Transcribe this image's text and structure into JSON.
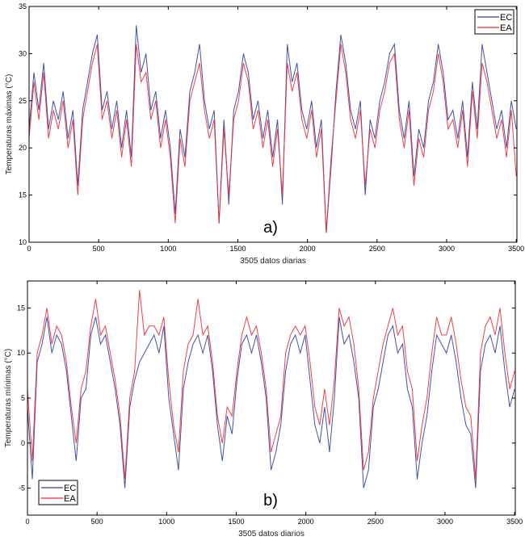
{
  "chart_data": [
    {
      "type": "line",
      "panel_label": "a)",
      "xlabel": "3505 datos diarias",
      "ylabel": "Temperaturas máximas (°C)",
      "xlim": [
        0,
        3505
      ],
      "ylim": [
        10,
        35
      ],
      "xticks": [
        "0",
        "500",
        "1000",
        "1500",
        "2000",
        "2500",
        "3000",
        "3500"
      ],
      "yticks": [
        "10",
        "15",
        "20",
        "25",
        "30",
        "35"
      ],
      "legend_position": "top-right",
      "grid": false,
      "x_step_days": 35,
      "series": [
        {
          "name": "EC",
          "color": "#2d3f9e",
          "values": [
            22,
            28,
            24,
            29,
            22,
            25,
            23,
            26,
            21,
            24,
            16,
            24,
            27,
            30,
            32,
            24,
            26,
            22,
            25,
            20,
            24,
            19,
            33,
            28,
            30,
            24,
            26,
            21,
            24,
            20,
            13,
            22,
            19,
            26,
            28,
            31,
            25,
            22,
            24,
            12,
            23,
            14,
            24,
            26,
            30,
            28,
            23,
            25,
            21,
            24,
            19,
            23,
            14,
            31,
            27,
            29,
            24,
            22,
            25,
            20,
            23,
            11,
            18,
            26,
            32,
            29,
            24,
            22,
            25,
            15,
            23,
            21,
            25,
            27,
            30,
            31,
            24,
            21,
            25,
            17,
            22,
            20,
            25,
            27,
            31,
            28,
            23,
            24,
            21,
            25,
            19,
            27,
            22,
            31,
            28,
            25,
            22,
            24,
            20,
            25,
            22
          ]
        },
        {
          "name": "EA",
          "color": "#ee2a35",
          "values": [
            21,
            27,
            23,
            28,
            21,
            24,
            22,
            25,
            20,
            23,
            15,
            23,
            26,
            29,
            31,
            23,
            25,
            21,
            24,
            19,
            23,
            18,
            31,
            27,
            28,
            23,
            25,
            20,
            23,
            19,
            12,
            21,
            18,
            25,
            27,
            29,
            24,
            21,
            23,
            12,
            22,
            15,
            23,
            25,
            29,
            27,
            22,
            24,
            20,
            23,
            18,
            22,
            15,
            29,
            26,
            28,
            23,
            21,
            24,
            19,
            22,
            11,
            19,
            25,
            31,
            28,
            23,
            21,
            24,
            16,
            22,
            20,
            24,
            26,
            29,
            30,
            23,
            20,
            24,
            16,
            21,
            19,
            24,
            26,
            30,
            27,
            22,
            23,
            20,
            24,
            18,
            26,
            21,
            29,
            27,
            24,
            21,
            23,
            19,
            24,
            17
          ]
        }
      ]
    },
    {
      "type": "line",
      "panel_label": "b)",
      "xlabel": "3505 datos diarios",
      "ylabel": "Temperaturas mínimas (°C)",
      "xlim": [
        0,
        3505
      ],
      "ylim": [
        -8,
        18
      ],
      "xticks": [
        "0",
        "500",
        "1000",
        "1500",
        "2000",
        "2500",
        "3000",
        "3500"
      ],
      "yticks": [
        "-5",
        "0",
        "5",
        "10",
        "15"
      ],
      "legend_position": "bottom-left",
      "grid": false,
      "x_step_days": 35,
      "series": [
        {
          "name": "EC",
          "color": "#2d3f9e",
          "values": [
            4,
            -4,
            9,
            11,
            14,
            10,
            12,
            11,
            8,
            3,
            -2,
            5,
            6,
            12,
            14,
            11,
            12,
            9,
            6,
            2,
            -5,
            4,
            7,
            9,
            10,
            11,
            12,
            10,
            13,
            5,
            1,
            -3,
            6,
            9,
            11,
            12,
            10,
            12,
            8,
            2,
            -2,
            3,
            1,
            7,
            11,
            12,
            10,
            12,
            9,
            5,
            -3,
            -1,
            2,
            8,
            11,
            12,
            10,
            12,
            7,
            2,
            0,
            4,
            -1,
            5,
            14,
            11,
            12,
            9,
            5,
            -5,
            -3,
            4,
            6,
            9,
            12,
            13,
            10,
            11,
            6,
            4,
            -4,
            0,
            3,
            8,
            12,
            11,
            10,
            12,
            9,
            5,
            2,
            1,
            -5,
            8,
            11,
            12,
            10,
            13,
            8,
            4,
            6
          ]
        },
        {
          "name": "EA",
          "color": "#ee2a35",
          "values": [
            6,
            -2,
            10,
            12,
            15,
            11,
            13,
            12,
            9,
            4,
            0,
            6,
            8,
            13,
            16,
            12,
            13,
            10,
            7,
            3,
            -4,
            5,
            8,
            17,
            12,
            13,
            13,
            12,
            14,
            7,
            2,
            -1,
            8,
            11,
            12,
            16,
            12,
            13,
            9,
            3,
            0,
            4,
            3,
            8,
            12,
            14,
            12,
            13,
            10,
            6,
            -1,
            1,
            3,
            10,
            12,
            13,
            12,
            13,
            9,
            4,
            2,
            6,
            2,
            7,
            15,
            13,
            14,
            11,
            6,
            -3,
            -1,
            5,
            8,
            11,
            13,
            15,
            12,
            13,
            8,
            6,
            -2,
            2,
            5,
            10,
            14,
            12,
            12,
            14,
            11,
            7,
            4,
            3,
            -4,
            10,
            13,
            14,
            12,
            15,
            10,
            6,
            8
          ]
        }
      ]
    }
  ]
}
